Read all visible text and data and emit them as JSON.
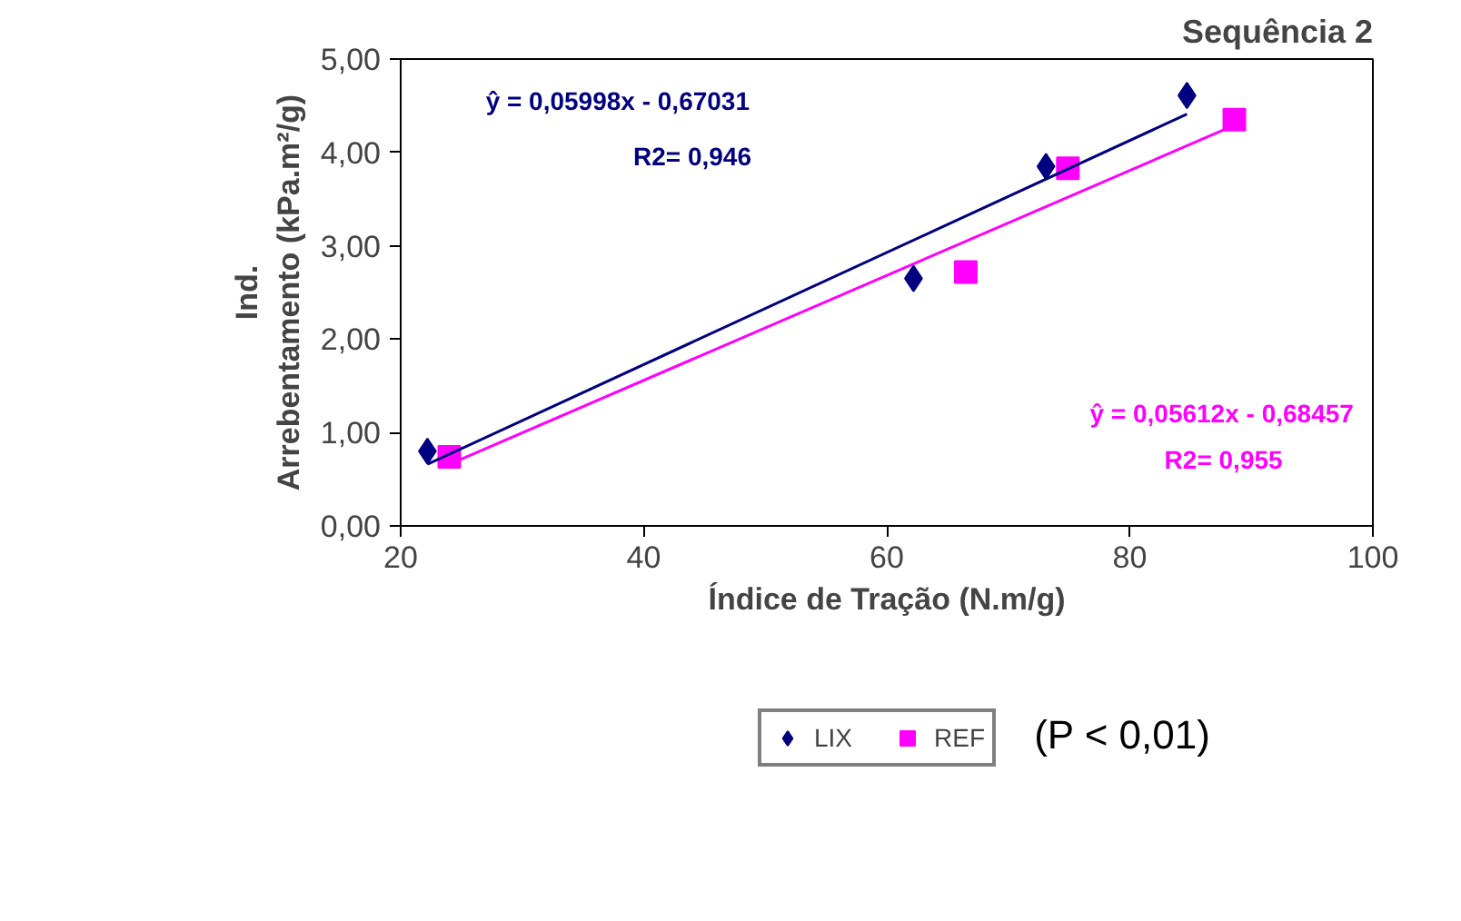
{
  "chart_data": {
    "type": "scatter",
    "title": "Sequência 2",
    "xlabel": "Índice de Tração (N.m/g)",
    "ylabel": "Ind.\nArrebentamento (kPa.m²/g)",
    "xlim": [
      20,
      100
    ],
    "xticks": [
      20,
      40,
      60,
      80,
      100
    ],
    "ylim": [
      0,
      5
    ],
    "yticks": [
      {
        "value": 0,
        "label": "0,00"
      },
      {
        "value": 1,
        "label": "1,00"
      },
      {
        "value": 2,
        "label": "2,00"
      },
      {
        "value": 3,
        "label": "3,00"
      },
      {
        "value": 4,
        "label": "4,00"
      },
      {
        "value": 5,
        "label": "5,00"
      }
    ],
    "grid": false,
    "legend": "bottom",
    "series": [
      {
        "name": "LIX",
        "marker": "diamond",
        "color": "#000080",
        "x": [
          22.2,
          62.2,
          73.1,
          84.7
        ],
        "values": [
          0.8,
          2.65,
          3.85,
          4.61
        ]
      },
      {
        "name": "REF",
        "marker": "square",
        "color": "#ff00ff",
        "x": [
          24.0,
          66.5,
          74.9,
          88.6
        ],
        "values": [
          0.74,
          2.72,
          3.83,
          4.35
        ]
      },
      {
        "type": "line",
        "color": "#000080",
        "x": [
          22.2,
          84.7
        ],
        "values": [
          0.66,
          4.41
        ]
      },
      {
        "type": "line",
        "color": "#ff00ff",
        "x": [
          24.0,
          88.6
        ],
        "values": [
          0.66,
          4.29
        ]
      }
    ],
    "annotations": [
      "ŷ  = 0,05998x - 0,67031",
      "R2= 0,946",
      "ŷ  = 0,05612x - 0,68457",
      "R2=  0,955",
      "(P < 0,01)"
    ]
  }
}
